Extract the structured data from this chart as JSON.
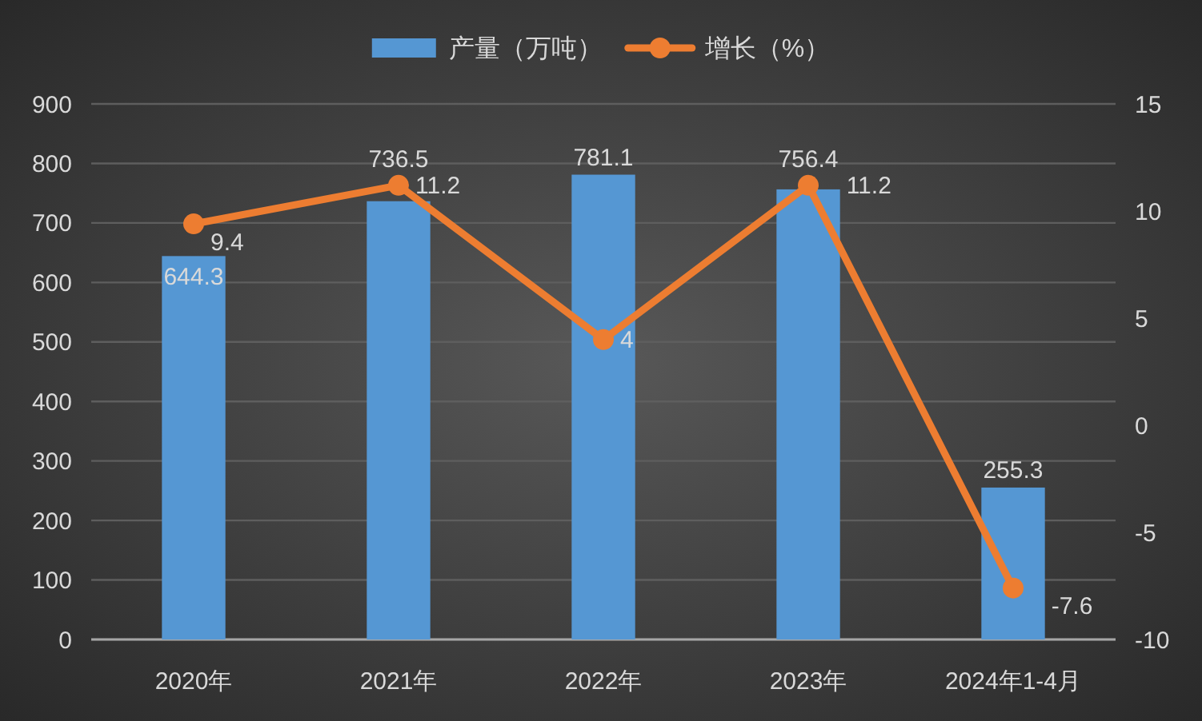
{
  "chart_data": {
    "type": "bar",
    "categories": [
      "2020年",
      "2021年",
      "2022年",
      "2023年",
      "2024年1-4月"
    ],
    "series": [
      {
        "name": "产量（万吨）",
        "color": "#5597d3",
        "values": [
          644.3,
          736.5,
          781.1,
          756.4,
          255.3
        ]
      },
      {
        "name": "增长（%）",
        "type": "line",
        "axis": "y2",
        "color": "#ed7d31",
        "values": [
          9.4,
          11.2,
          4,
          11.2,
          -7.6
        ]
      }
    ],
    "ylim": [
      0,
      900
    ],
    "yticks": [
      0,
      100,
      200,
      300,
      400,
      500,
      600,
      700,
      800,
      900
    ],
    "y2lim": [
      -10,
      15
    ],
    "y2ticks": [
      -10,
      -5,
      0,
      5,
      10,
      15
    ],
    "grid": "y",
    "legend": "top",
    "marker": "circle",
    "data_labels": true
  }
}
